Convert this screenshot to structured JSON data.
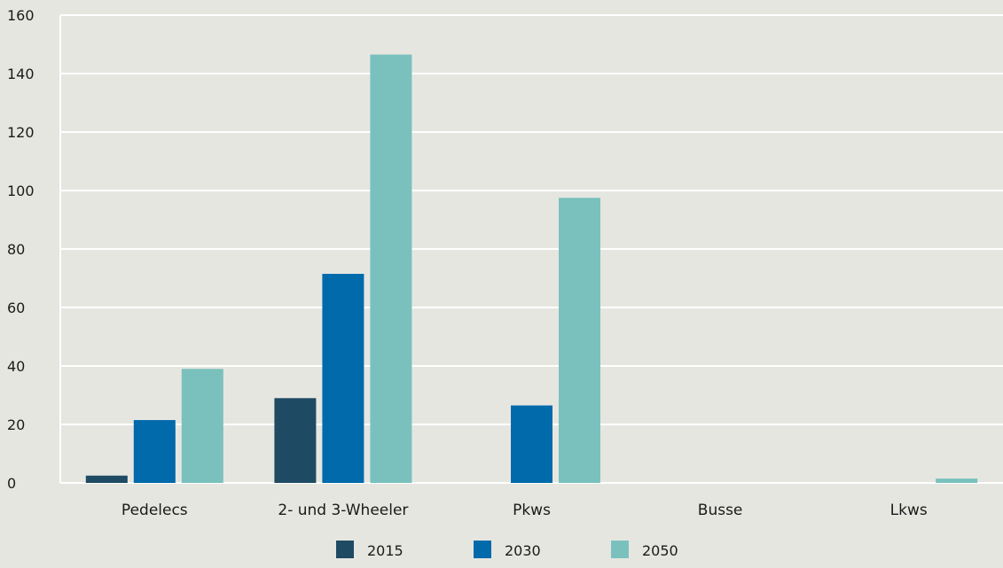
{
  "chart_data": {
    "type": "bar",
    "categories": [
      "Pedelecs",
      "2- und 3-Wheeler",
      "Pkws",
      "Busse",
      "Lkws"
    ],
    "series": [
      {
        "name": "2015",
        "values": [
          2.5,
          29,
          0,
          0,
          0
        ],
        "color": "#1e4a64"
      },
      {
        "name": "2030",
        "values": [
          21.5,
          71.5,
          26.5,
          0,
          0
        ],
        "color": "#006aab"
      },
      {
        "name": "2050",
        "values": [
          39,
          146.5,
          97.5,
          0,
          1.5
        ],
        "color": "#7ac1bd"
      }
    ],
    "ylim": [
      0,
      160
    ],
    "yticks": [
      0,
      20,
      40,
      60,
      80,
      100,
      120,
      140,
      160
    ],
    "grid": true,
    "legend_position": "bottom-center"
  }
}
